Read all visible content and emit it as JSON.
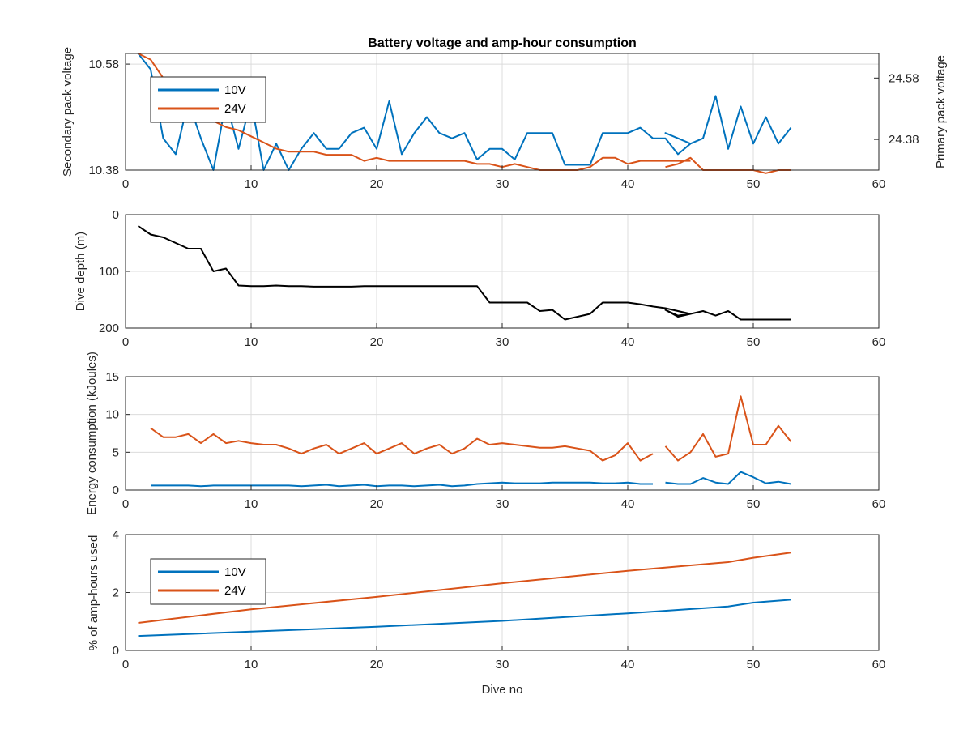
{
  "chart_data": [
    {
      "type": "line",
      "title": "Battery voltage and amp-hour consumption",
      "xlabel": "",
      "xlim": [
        0,
        60
      ],
      "xticks": [
        0,
        10,
        20,
        30,
        40,
        50,
        60
      ],
      "left_axis": {
        "label": "Secondary pack voltage",
        "color": "#0072BD",
        "ylim": [
          10.38,
          10.6
        ],
        "ticks": [
          10.38,
          10.58
        ],
        "ticklabels": [
          "10.38",
          "10.58"
        ]
      },
      "right_axis": {
        "label": "Primary pack voltage",
        "color": "#D95319",
        "ylim": [
          24.28,
          24.66
        ],
        "ticks": [
          24.38,
          24.58
        ],
        "ticklabels": [
          "24.38",
          "24.58"
        ]
      },
      "grid": true,
      "legend": {
        "placement": "top-left",
        "entries": [
          "10V",
          "24V"
        ]
      },
      "series": [
        {
          "name": "10V",
          "axis": "left",
          "color": "#0072BD",
          "x": [
            1,
            2,
            3,
            4,
            5,
            6,
            7,
            8,
            9,
            10,
            11,
            12,
            13,
            14,
            15,
            16,
            17,
            18,
            19,
            20,
            21,
            22,
            23,
            24,
            25,
            26,
            27,
            28,
            29,
            30,
            31,
            32,
            33,
            34,
            35,
            36,
            37,
            38,
            39,
            40,
            41,
            42,
            43,
            44,
            45,
            44,
            43,
            44,
            45,
            46,
            47,
            48,
            49,
            50,
            51,
            52,
            53
          ],
          "values": [
            10.6,
            10.57,
            10.44,
            10.41,
            10.51,
            10.44,
            10.38,
            10.51,
            10.42,
            10.51,
            10.38,
            10.43,
            10.38,
            10.42,
            10.45,
            10.42,
            10.42,
            10.45,
            10.46,
            10.42,
            10.51,
            10.41,
            10.45,
            10.48,
            10.45,
            10.44,
            10.45,
            10.4,
            10.42,
            10.42,
            10.4,
            10.45,
            10.45,
            10.45,
            10.39,
            10.39,
            10.39,
            10.45,
            10.45,
            10.45,
            10.46,
            10.44,
            10.44,
            10.41,
            10.43,
            10.44,
            10.45,
            10.44,
            10.43,
            10.44,
            10.52,
            10.42,
            10.5,
            10.43,
            10.48,
            10.43,
            10.46
          ]
        },
        {
          "name": "24V",
          "axis": "right",
          "color": "#D95319",
          "x": [
            1,
            2,
            3,
            4,
            5,
            6,
            7,
            8,
            9,
            10,
            11,
            12,
            13,
            14,
            15,
            16,
            17,
            18,
            19,
            20,
            21,
            22,
            23,
            24,
            25,
            26,
            27,
            28,
            29,
            30,
            31,
            32,
            33,
            34,
            35,
            36,
            37,
            38,
            39,
            40,
            41,
            42,
            43,
            44,
            45,
            null,
            43,
            44,
            45,
            46,
            47,
            48,
            49,
            50,
            51,
            52,
            53
          ],
          "values": [
            24.66,
            24.64,
            24.58,
            24.54,
            24.5,
            24.46,
            24.44,
            24.42,
            24.41,
            24.39,
            24.37,
            24.35,
            24.34,
            24.34,
            24.34,
            24.33,
            24.33,
            24.33,
            24.31,
            24.32,
            24.31,
            24.31,
            24.31,
            24.31,
            24.31,
            24.31,
            24.31,
            24.3,
            24.3,
            24.29,
            24.3,
            24.29,
            24.28,
            24.28,
            24.28,
            24.28,
            24.29,
            24.32,
            24.32,
            24.3,
            24.31,
            24.31,
            24.31,
            24.31,
            24.31,
            null,
            24.29,
            24.3,
            24.32,
            24.28,
            24.28,
            24.28,
            24.28,
            24.28,
            24.27,
            24.28,
            24.28
          ]
        }
      ]
    },
    {
      "type": "line",
      "title": "",
      "xlabel": "",
      "ylabel": "Dive depth (m)",
      "xlim": [
        0,
        60
      ],
      "ylim": [
        0,
        200
      ],
      "y_reversed": true,
      "xticks": [
        0,
        10,
        20,
        30,
        40,
        50,
        60
      ],
      "yticks": [
        0,
        100,
        200
      ],
      "yticklabels": [
        "0",
        "100",
        "200"
      ],
      "grid": true,
      "series": [
        {
          "color": "#000000",
          "x": [
            1,
            2,
            3,
            4,
            5,
            6,
            7,
            8,
            9,
            10,
            11,
            12,
            13,
            14,
            15,
            16,
            17,
            18,
            19,
            20,
            21,
            22,
            23,
            24,
            25,
            26,
            27,
            28,
            29,
            30,
            31,
            32,
            33,
            34,
            35,
            36,
            37,
            38,
            39,
            40,
            41,
            42,
            43,
            44,
            45,
            44,
            43,
            44,
            45,
            46,
            47,
            48,
            49,
            50,
            51,
            52,
            53
          ],
          "values": [
            20,
            35,
            40,
            50,
            60,
            60,
            100,
            95,
            125,
            126,
            126,
            125,
            126,
            126,
            127,
            127,
            127,
            127,
            126,
            126,
            126,
            126,
            126,
            126,
            126,
            126,
            126,
            126,
            155,
            155,
            155,
            155,
            170,
            168,
            185,
            180,
            175,
            155,
            155,
            155,
            158,
            162,
            165,
            170,
            175,
            178,
            168,
            180,
            175,
            170,
            178,
            170,
            185,
            185,
            185,
            185,
            185
          ]
        }
      ]
    },
    {
      "type": "line",
      "title": "",
      "xlabel": "",
      "ylabel": "Energy consumption (kJoules)",
      "xlim": [
        0,
        60
      ],
      "ylim": [
        0,
        15
      ],
      "xticks": [
        0,
        10,
        20,
        30,
        40,
        50,
        60
      ],
      "yticks": [
        0,
        5,
        10,
        15
      ],
      "yticklabels": [
        "0",
        "5",
        "10",
        "15"
      ],
      "grid": true,
      "series": [
        {
          "name": "10V",
          "color": "#0072BD",
          "x": [
            2,
            3,
            4,
            5,
            6,
            7,
            8,
            9,
            10,
            11,
            12,
            13,
            14,
            15,
            16,
            17,
            18,
            19,
            20,
            21,
            22,
            23,
            24,
            25,
            26,
            27,
            28,
            29,
            30,
            31,
            32,
            33,
            34,
            35,
            36,
            37,
            38,
            39,
            40,
            41,
            42,
            null,
            43,
            44,
            45,
            46,
            47,
            48,
            49,
            50,
            51,
            52,
            53
          ],
          "values": [
            0.6,
            0.6,
            0.6,
            0.6,
            0.5,
            0.6,
            0.6,
            0.6,
            0.6,
            0.6,
            0.6,
            0.6,
            0.5,
            0.6,
            0.7,
            0.5,
            0.6,
            0.7,
            0.5,
            0.6,
            0.6,
            0.5,
            0.6,
            0.7,
            0.5,
            0.6,
            0.8,
            0.9,
            1.0,
            0.9,
            0.9,
            0.9,
            1.0,
            1.0,
            1.0,
            1.0,
            0.9,
            0.9,
            1.0,
            0.8,
            0.8,
            null,
            1.0,
            0.8,
            0.8,
            1.6,
            1.0,
            0.8,
            2.4,
            1.7,
            0.9,
            1.1,
            0.8
          ]
        },
        {
          "name": "24V",
          "color": "#D95319",
          "x": [
            2,
            3,
            4,
            5,
            6,
            7,
            8,
            9,
            10,
            11,
            12,
            13,
            14,
            15,
            16,
            17,
            18,
            19,
            20,
            21,
            22,
            23,
            24,
            25,
            26,
            27,
            28,
            29,
            30,
            31,
            32,
            33,
            34,
            35,
            36,
            37,
            38,
            39,
            40,
            41,
            42,
            null,
            43,
            44,
            45,
            46,
            47,
            48,
            49,
            50,
            51,
            52,
            53
          ],
          "values": [
            8.2,
            7.0,
            7.0,
            7.4,
            6.2,
            7.4,
            6.2,
            6.5,
            6.2,
            6.0,
            6.0,
            5.5,
            4.8,
            5.5,
            6.0,
            4.8,
            5.5,
            6.2,
            4.8,
            5.5,
            6.2,
            4.8,
            5.5,
            6.0,
            4.8,
            5.5,
            6.8,
            6.0,
            6.2,
            6.0,
            5.8,
            5.6,
            5.6,
            5.8,
            5.5,
            5.2,
            3.9,
            4.6,
            6.2,
            3.9,
            4.8,
            null,
            5.8,
            3.9,
            5.0,
            7.4,
            4.4,
            4.8,
            12.4,
            6.0,
            6.0,
            8.5,
            6.4
          ]
        }
      ]
    },
    {
      "type": "line",
      "title": "",
      "xlabel": "Dive no",
      "ylabel": "% of amp-hours used",
      "xlim": [
        0,
        60
      ],
      "ylim": [
        0,
        4
      ],
      "xticks": [
        0,
        10,
        20,
        30,
        40,
        50,
        60
      ],
      "yticks": [
        0,
        2,
        4
      ],
      "yticklabels": [
        "0",
        "2",
        "4"
      ],
      "grid": true,
      "legend": {
        "placement": "top-left",
        "entries": [
          "10V",
          "24V"
        ]
      },
      "series": [
        {
          "name": "10V",
          "color": "#0072BD",
          "x": [
            1,
            10,
            20,
            30,
            40,
            48,
            50,
            53
          ],
          "values": [
            0.5,
            0.65,
            0.82,
            1.02,
            1.28,
            1.52,
            1.65,
            1.75
          ]
        },
        {
          "name": "24V",
          "color": "#D95319",
          "x": [
            1,
            10,
            20,
            30,
            40,
            48,
            50,
            53
          ],
          "values": [
            0.95,
            1.42,
            1.85,
            2.32,
            2.75,
            3.05,
            3.2,
            3.38
          ]
        }
      ]
    }
  ]
}
